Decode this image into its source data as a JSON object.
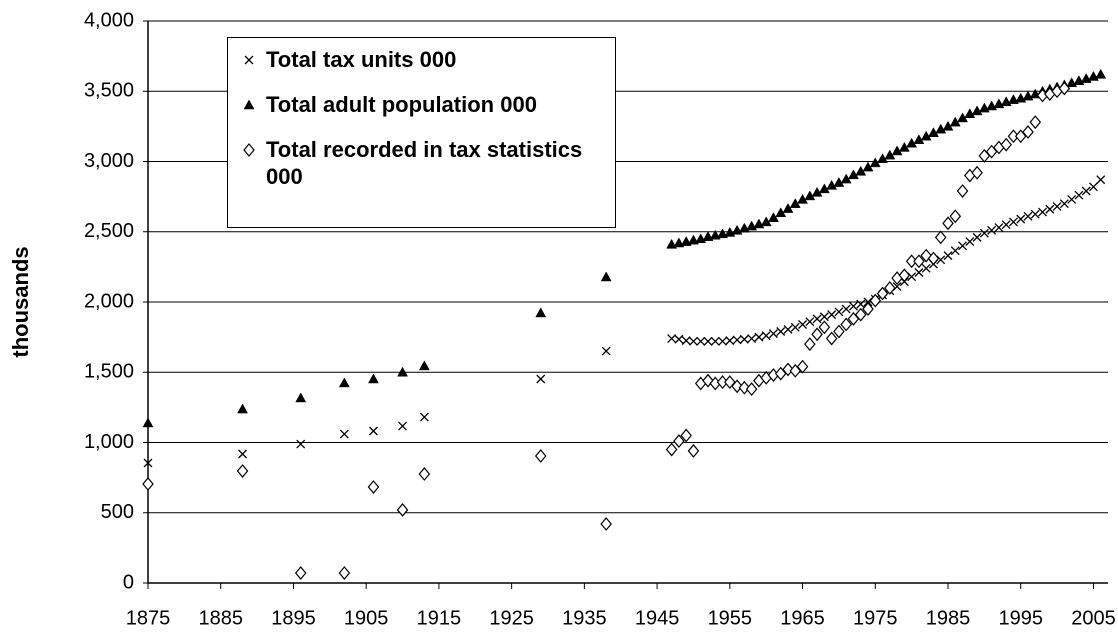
{
  "chart_data": {
    "type": "scatter",
    "y_label": "thousands",
    "xlim": [
      1875,
      2007
    ],
    "xticks": [
      1875,
      1885,
      1895,
      1905,
      1915,
      1925,
      1935,
      1945,
      1955,
      1965,
      1975,
      1985,
      1995,
      2005
    ],
    "ylim": [
      0,
      4000
    ],
    "yticks": [
      0,
      500,
      {
        "value": 1000,
        "label": "1,000"
      },
      {
        "value": 1500,
        "label": "1,500"
      },
      {
        "value": 2000,
        "label": "2,000"
      },
      {
        "value": 2500,
        "label": "2,500"
      },
      {
        "value": 3000,
        "label": "3,000"
      },
      {
        "value": 3500,
        "label": "3,500"
      },
      {
        "value": 4000,
        "label": "4,000"
      }
    ],
    "grid": true,
    "legend": "upper left",
    "series": [
      {
        "name": "Total tax units 000",
        "marker": "x",
        "color": "#000000",
        "x": [
          1875,
          1888,
          1896,
          1902,
          1906,
          1910,
          1913,
          1929,
          1938,
          1947,
          1948,
          1949,
          1950,
          1951,
          1952,
          1953,
          1954,
          1955,
          1956,
          1957,
          1958,
          1959,
          1960,
          1961,
          1962,
          1963,
          1964,
          1965,
          1966,
          1967,
          1968,
          1969,
          1970,
          1971,
          1972,
          1973,
          1974,
          1975,
          1976,
          1977,
          1978,
          1979,
          1980,
          1981,
          1982,
          1983,
          1984,
          1985,
          1986,
          1987,
          1988,
          1989,
          1990,
          1991,
          1992,
          1993,
          1994,
          1995,
          1996,
          1997,
          1998,
          1999,
          2000,
          2001,
          2002,
          2003,
          2004,
          2005,
          2006
        ],
        "values": [
          854,
          918,
          989,
          1060,
          1082,
          1117,
          1181,
          1452,
          1651,
          1740,
          1735,
          1725,
          1720,
          1720,
          1720,
          1720,
          1720,
          1725,
          1730,
          1735,
          1740,
          1750,
          1760,
          1775,
          1790,
          1805,
          1820,
          1840,
          1860,
          1880,
          1895,
          1910,
          1930,
          1950,
          1970,
          1985,
          2000,
          2020,
          2050,
          2080,
          2110,
          2145,
          2180,
          2210,
          2240,
          2270,
          2300,
          2330,
          2365,
          2400,
          2430,
          2460,
          2490,
          2510,
          2530,
          2550,
          2570,
          2590,
          2610,
          2625,
          2640,
          2660,
          2680,
          2700,
          2730,
          2760,
          2790,
          2820,
          2870
        ]
      },
      {
        "name": "Total adult population 000",
        "marker": "triangle",
        "color": "#000000",
        "x": [
          1875,
          1888,
          1896,
          1902,
          1906,
          1910,
          1913,
          1929,
          1938,
          1947,
          1948,
          1949,
          1950,
          1951,
          1952,
          1953,
          1954,
          1955,
          1956,
          1957,
          1958,
          1959,
          1960,
          1961,
          1962,
          1963,
          1964,
          1965,
          1966,
          1967,
          1968,
          1969,
          1970,
          1971,
          1972,
          1973,
          1974,
          1975,
          1976,
          1977,
          1978,
          1979,
          1980,
          1981,
          1982,
          1983,
          1984,
          1985,
          1986,
          1987,
          1988,
          1989,
          1990,
          1991,
          1992,
          1993,
          1994,
          1995,
          1996,
          1997,
          1998,
          1999,
          2000,
          2001,
          2002,
          2003,
          2004,
          2005,
          2006
        ],
        "values": [
          1139,
          1238,
          1317,
          1424,
          1452,
          1500,
          1545,
          1922,
          2178,
          2410,
          2420,
          2430,
          2440,
          2450,
          2465,
          2475,
          2485,
          2495,
          2510,
          2525,
          2540,
          2555,
          2570,
          2600,
          2635,
          2665,
          2700,
          2730,
          2755,
          2780,
          2805,
          2830,
          2850,
          2875,
          2905,
          2930,
          2960,
          2990,
          3020,
          3045,
          3075,
          3100,
          3130,
          3155,
          3180,
          3205,
          3230,
          3250,
          3280,
          3310,
          3340,
          3360,
          3380,
          3395,
          3410,
          3425,
          3440,
          3450,
          3465,
          3480,
          3500,
          3515,
          3530,
          3545,
          3560,
          3575,
          3590,
          3605,
          3620
        ]
      },
      {
        "name": "Total recorded in tax statistics 000",
        "marker": "diamond",
        "color": "#000000",
        "x": [
          1875,
          1888,
          1896,
          1902,
          1906,
          1910,
          1913,
          1929,
          1938,
          1947,
          1948,
          1949,
          1950,
          1951,
          1952,
          1953,
          1954,
          1955,
          1956,
          1957,
          1958,
          1959,
          1960,
          1961,
          1962,
          1963,
          1964,
          1965,
          1966,
          1967,
          1968,
          1969,
          1970,
          1971,
          1972,
          1973,
          1974,
          1975,
          1976,
          1977,
          1978,
          1979,
          1980,
          1981,
          1982,
          1983,
          1984,
          1985,
          1986,
          1987,
          1988,
          1989,
          1990,
          1991,
          1992,
          1993,
          1994,
          1995,
          1996,
          1997,
          1998,
          1999,
          2000,
          2001
        ],
        "values": [
          705,
          797,
          71,
          71,
          683,
          520,
          776,
          904,
          420,
          950,
          1010,
          1050,
          940,
          1420,
          1440,
          1420,
          1430,
          1430,
          1400,
          1390,
          1380,
          1440,
          1460,
          1480,
          1490,
          1520,
          1510,
          1540,
          1700,
          1770,
          1820,
          1740,
          1790,
          1840,
          1880,
          1910,
          1950,
          2010,
          2060,
          2100,
          2170,
          2190,
          2290,
          2290,
          2330,
          2310,
          2460,
          2560,
          2610,
          2790,
          2900,
          2920,
          3040,
          3070,
          3100,
          3120,
          3180,
          3180,
          3210,
          3280,
          3470,
          3480,
          3500,
          3520
        ]
      }
    ]
  }
}
